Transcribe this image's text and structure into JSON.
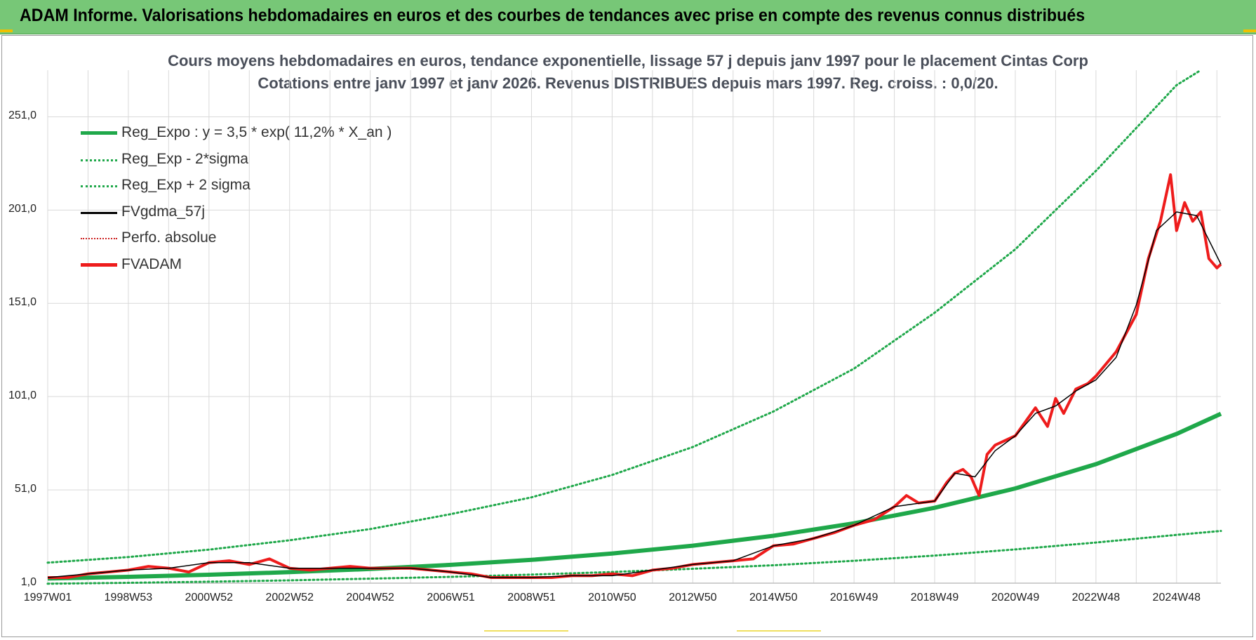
{
  "banner": {
    "title": "ADAM Informe. Valorisations hebdomadaires en euros et des courbes de tendances avec prise en compte des revenus connus distribués"
  },
  "colors": {
    "banner_bg": "#77c777",
    "reg_expo": "#1fa84a",
    "fvadam": "#ee1c1c",
    "fvgdma": "#000000",
    "perfo": "#cc2222",
    "grid": "#d9d9d9"
  },
  "chart_data": {
    "type": "line",
    "title": "Cours moyens hebdomadaires en euros, tendance exponentielle, lissage 57 j depuis janv 1997 pour le placement Cintas Corp",
    "subtitle": "Cotations entre janv 1997 et janv 2026. Revenus DISTRIBUES depuis mars 1997.  Reg. croiss. : 0,0/20.",
    "xlabel": "",
    "ylabel": "",
    "xlim": [
      1997.0,
      2026.1
    ],
    "ylim": [
      1.0,
      276.0
    ],
    "y_ticks": [
      "1,0",
      "51,0",
      "101,0",
      "151,0",
      "201,0",
      "251,0"
    ],
    "y_tick_values": [
      1,
      51,
      101,
      151,
      201,
      251
    ],
    "x_ticks": [
      "1997W01",
      "1998W53",
      "2000W52",
      "2002W52",
      "2004W52",
      "2006W51",
      "2008W51",
      "2010W50",
      "2012W50",
      "2014W50",
      "2016W49",
      "2018W49",
      "2020W49",
      "2022W48",
      "2024W48"
    ],
    "x_tick_values": [
      1997,
      1999,
      2001,
      2003,
      2005,
      2007,
      2009,
      2011,
      2013,
      2015,
      2017,
      2019,
      2021,
      2023,
      2025
    ],
    "legend": [
      {
        "key": "reg_expo",
        "label": "Reg_Expo : y = 3,5 * exp( 11,2% *  X_an )",
        "style": "thick-solid-green"
      },
      {
        "key": "reg_minus",
        "label": "Reg_Exp - 2*sigma",
        "style": "dotted-green"
      },
      {
        "key": "reg_plus",
        "label": "Reg_Exp + 2 sigma",
        "style": "dotted-green"
      },
      {
        "key": "fvgdma",
        "label": "FVgdma_57j",
        "style": "solid-black"
      },
      {
        "key": "perfo",
        "label": "Perfo. absolue",
        "style": "dotted-red"
      },
      {
        "key": "fvadam",
        "label": "FVADAM",
        "style": "thick-solid-red"
      }
    ],
    "series": [
      {
        "name": "Reg_Expo",
        "x": [
          1997,
          1999,
          2001,
          2003,
          2005,
          2007,
          2009,
          2011,
          2013,
          2015,
          2017,
          2019,
          2021,
          2023,
          2025,
          2026.1
        ],
        "values": [
          3.5,
          4.4,
          5.5,
          6.9,
          8.6,
          10.8,
          13.5,
          16.9,
          21.1,
          26.4,
          33.1,
          41.4,
          51.8,
          64.8,
          81.0,
          91.8
        ]
      },
      {
        "name": "Reg_Exp - 2*sigma",
        "x": [
          1997,
          1999,
          2001,
          2003,
          2005,
          2007,
          2009,
          2011,
          2013,
          2015,
          2017,
          2019,
          2021,
          2023,
          2025,
          2026.1
        ],
        "values": [
          0.7,
          1.2,
          1.8,
          2.5,
          3.4,
          4.4,
          5.6,
          7.0,
          8.7,
          10.6,
          13.0,
          15.8,
          19.1,
          22.8,
          26.9,
          29.0
        ]
      },
      {
        "name": "Reg_Exp + 2 sigma",
        "x": [
          1997,
          1999,
          2001,
          2003,
          2005,
          2007,
          2009,
          2011,
          2013,
          2015,
          2017,
          2019,
          2021,
          2023,
          2025,
          2025.6
        ],
        "values": [
          12.0,
          15.0,
          19.0,
          24.0,
          30.0,
          38.0,
          47.0,
          59.0,
          74.0,
          93.0,
          116.0,
          146.0,
          180.0,
          222.0,
          268.0,
          276.0
        ]
      },
      {
        "name": "FVADAM",
        "x": [
          1997,
          1997.5,
          1998,
          1998.5,
          1999,
          1999.5,
          2000,
          2000.5,
          2001,
          2001.5,
          2002,
          2002.5,
          2003,
          2003.5,
          2004,
          2004.5,
          2005,
          2005.5,
          2006,
          2006.5,
          2007,
          2007.5,
          2008,
          2008.5,
          2009,
          2009.5,
          2010,
          2010.5,
          2011,
          2011.5,
          2012,
          2012.5,
          2013,
          2013.5,
          2014,
          2014.5,
          2015,
          2015.5,
          2016,
          2016.5,
          2017,
          2017.5,
          2018,
          2018.3,
          2018.6,
          2019,
          2019.3,
          2019.5,
          2019.7,
          2019.9,
          2020.1,
          2020.3,
          2020.5,
          2021,
          2021.5,
          2021.8,
          2022,
          2022.2,
          2022.5,
          2022.8,
          2023,
          2023.5,
          2024,
          2024.3,
          2024.6,
          2024.85,
          2025.0,
          2025.2,
          2025.4,
          2025.6,
          2025.8,
          2026.0,
          2026.1
        ],
        "values": [
          4,
          4,
          6,
          7,
          8,
          10,
          9,
          7,
          12,
          13,
          11,
          14,
          9,
          8,
          9,
          10,
          9,
          9,
          9,
          8,
          7,
          6,
          4,
          4,
          4,
          4,
          5,
          5,
          6,
          5,
          8,
          9,
          11,
          12,
          13,
          14,
          21,
          22,
          25,
          28,
          32,
          35,
          42,
          48,
          44,
          45,
          55,
          60,
          62,
          58,
          48,
          70,
          75,
          80,
          95,
          85,
          100,
          92,
          105,
          108,
          112,
          125,
          145,
          175,
          195,
          220,
          190,
          205,
          195,
          200,
          175,
          170,
          172
        ]
      },
      {
        "name": "FVgdma_57j",
        "x": [
          1997,
          1998,
          1999,
          2000,
          2001,
          2002,
          2003,
          2004,
          2005,
          2006,
          2007,
          2008,
          2009,
          2010,
          2011,
          2012,
          2013,
          2014,
          2015,
          2016,
          2017,
          2018,
          2019,
          2019.5,
          2020,
          2020.5,
          2021,
          2021.5,
          2022,
          2022.5,
          2023,
          2023.5,
          2024,
          2024.5,
          2025,
          2025.5,
          2026.1
        ],
        "values": [
          4,
          6,
          8,
          9,
          12,
          12,
          9,
          9,
          9,
          9,
          7,
          4,
          4,
          5,
          5,
          8,
          11,
          13,
          21,
          25,
          32,
          42,
          45,
          60,
          58,
          72,
          80,
          92,
          96,
          104,
          110,
          122,
          150,
          190,
          200,
          198,
          172
        ]
      }
    ]
  },
  "footer": {
    "marks": [
      "",
      ""
    ]
  }
}
